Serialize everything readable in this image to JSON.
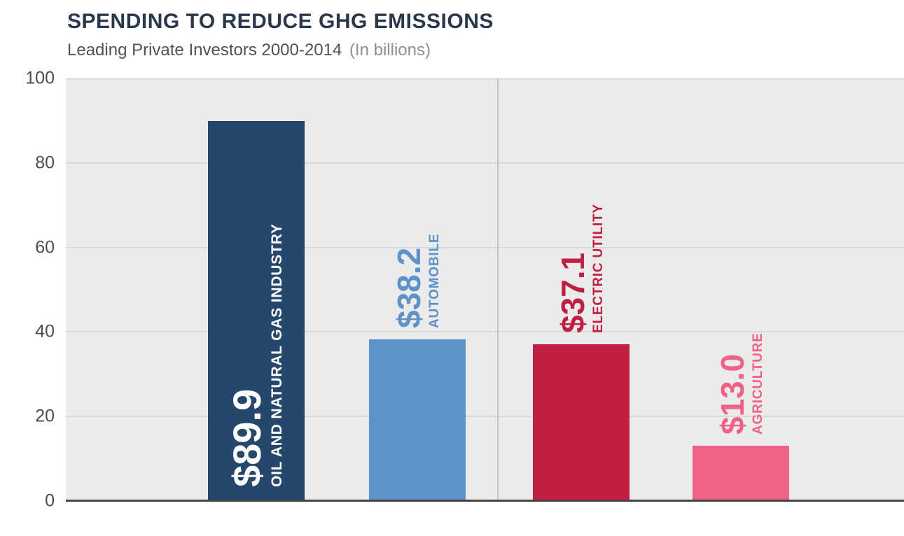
{
  "chart_data": {
    "type": "bar",
    "title": "SPENDING TO REDUCE GHG EMISSIONS",
    "subtitle": "Leading Private Investors 2000-2014",
    "subtitle_note": "(In billions)",
    "categories": [
      "OIL AND NATURAL GAS INDUSTRY",
      "AUTOMOBILE",
      "ELECTRIC UTILITY",
      "AGRICULTURE"
    ],
    "values": [
      89.9,
      38.2,
      37.1,
      13.0
    ],
    "value_labels": [
      "$89.9",
      "$38.2",
      "$37.1",
      "$13.0"
    ],
    "bar_colors": [
      "#24476B",
      "#5D93C8",
      "#C01F43",
      "#EF6287"
    ],
    "label_placement": [
      "inside-bottom",
      "above",
      "above",
      "above"
    ],
    "ylim": [
      0,
      100
    ],
    "yticks": [
      100,
      80,
      60,
      40,
      20,
      0
    ],
    "grid": true,
    "legend": false,
    "colors": {
      "title": "#29394B",
      "subtitle": "#525252",
      "subtitle_note": "#909090",
      "plot_background": "#EBEBEB",
      "gridline": "#D9D9D9",
      "divider": "#C5C5C5",
      "baseline": "#454545",
      "axis_text": "#4D4D4D",
      "first_bar_label_text": "#FFFFFF"
    }
  }
}
